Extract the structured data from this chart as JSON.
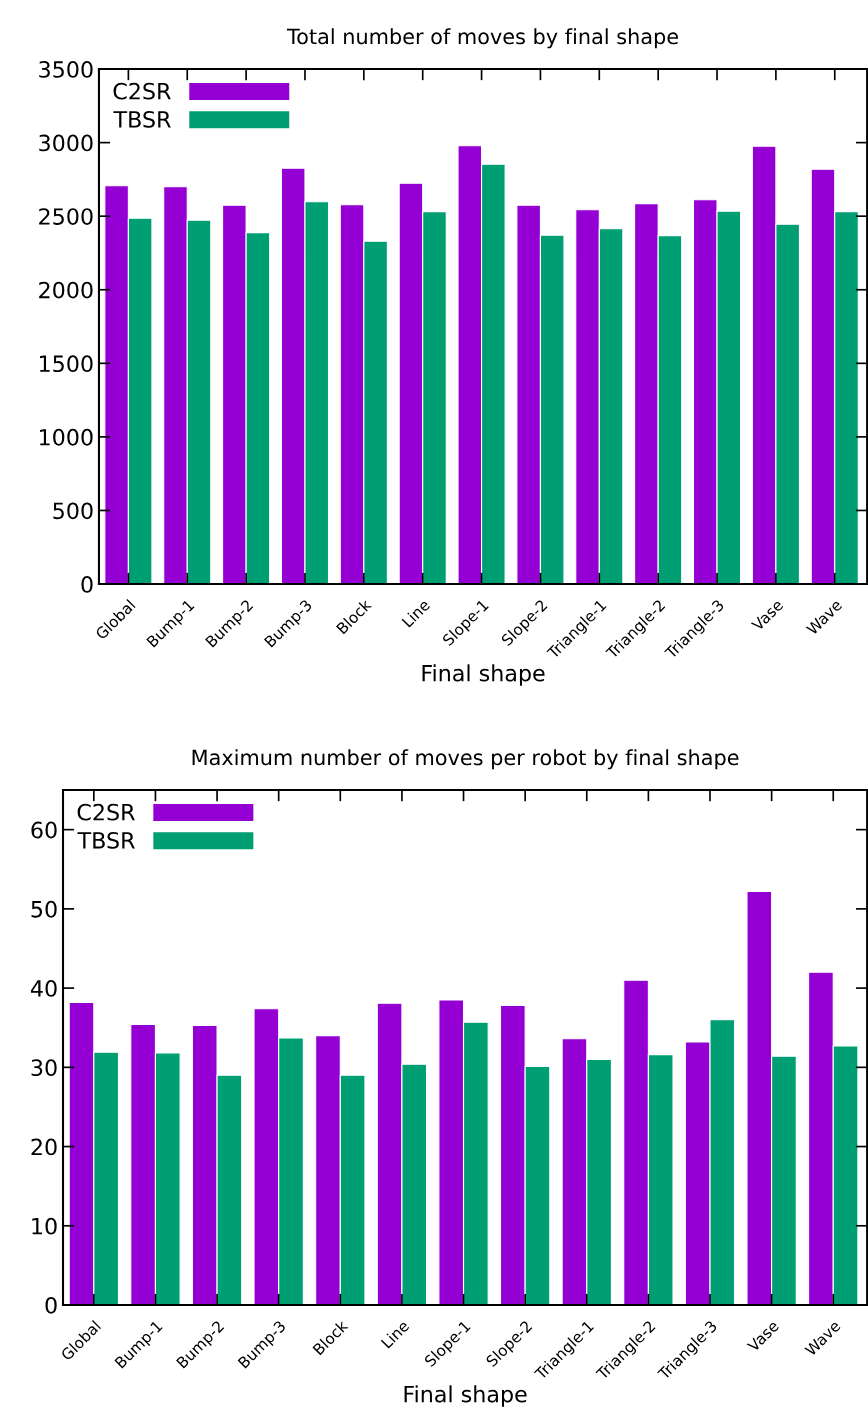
{
  "chart_data": [
    {
      "type": "bar",
      "title": "Total number of moves by final shape",
      "xlabel": "Final shape",
      "categories": [
        "Global",
        "Bump-1",
        "Bump-2",
        "Bump-3",
        "Block",
        "Line",
        "Slope-1",
        "Slope-2",
        "Triangle-1",
        "Triangle-2",
        "Triangle-3",
        "Vase",
        "Wave"
      ],
      "series": [
        {
          "name": "C2SR",
          "color": "#9400d3",
          "values": [
            2707,
            2700,
            2575,
            2826,
            2578,
            2724,
            2979,
            2575,
            2544,
            2585,
            2612,
            2975,
            2819
          ]
        },
        {
          "name": "TBSR",
          "color": "#009e73",
          "values": [
            2486,
            2473,
            2388,
            2598,
            2330,
            2531,
            2853,
            2371,
            2415,
            2368,
            2534,
            2446,
            2531
          ]
        }
      ],
      "ylim": [
        0,
        3500
      ],
      "yticks": [
        0,
        500,
        1000,
        1500,
        2000,
        2500,
        3000,
        3500
      ],
      "grid": false,
      "legend": "top left"
    },
    {
      "type": "bar",
      "title": "Maximum number of moves per robot by final shape",
      "xlabel": "Final shape",
      "categories": [
        "Global",
        "Bump-1",
        "Bump-2",
        "Bump-3",
        "Block",
        "Line",
        "Slope-1",
        "Slope-2",
        "Triangle-1",
        "Triangle-2",
        "Triangle-3",
        "Vase",
        "Wave"
      ],
      "series": [
        {
          "name": "C2SR",
          "color": "#9400d3",
          "values": [
            38.2,
            35.4,
            35.3,
            37.4,
            34.0,
            38.1,
            38.5,
            37.8,
            33.6,
            41.0,
            33.2,
            52.2,
            42.0
          ]
        },
        {
          "name": "TBSR",
          "color": "#009e73",
          "values": [
            31.9,
            31.8,
            29.0,
            33.7,
            29.0,
            30.4,
            35.7,
            30.1,
            31.0,
            31.6,
            36.0,
            31.4,
            32.7
          ]
        }
      ],
      "ylim": [
        0,
        65
      ],
      "yticks": [
        0,
        10,
        20,
        30,
        40,
        50,
        60
      ],
      "grid": false,
      "legend": "top left"
    }
  ]
}
